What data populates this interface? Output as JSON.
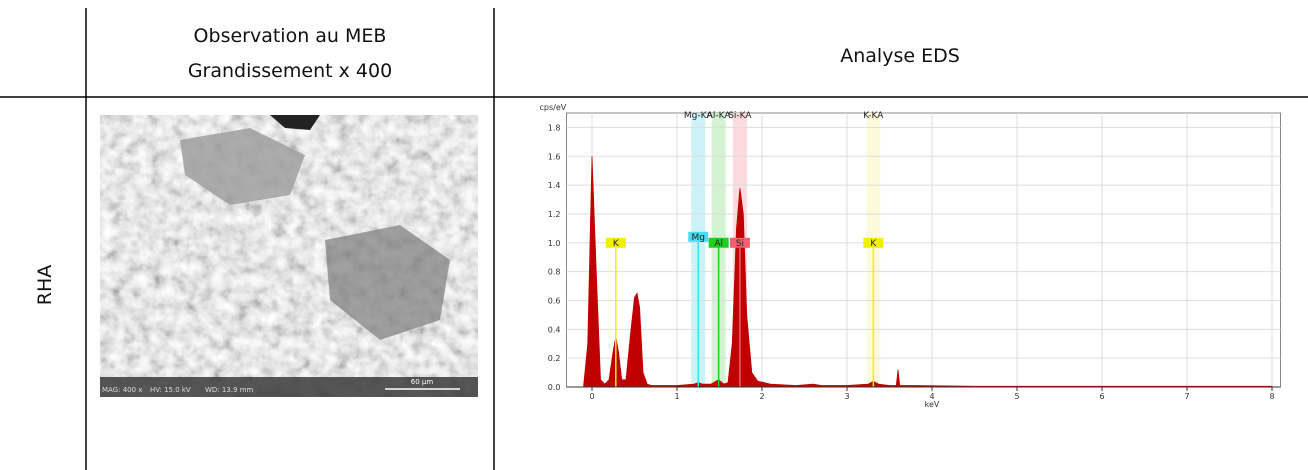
{
  "table": {
    "header": {
      "sem": [
        "Observation au MEB",
        "Grandissement x 400"
      ],
      "eds": "Analyse EDS"
    },
    "row_label": "RHA"
  },
  "sem_image": {
    "info": [
      "MAG: 400 x",
      "HV: 15.0 kV",
      "WD: 13.9 mm"
    ],
    "scale_bar": "60 µm"
  },
  "chart_data": {
    "type": "area",
    "y_label": "cps/eV",
    "x_label": "keV",
    "color": "#c00000",
    "grid": true,
    "xlim": [
      -0.3,
      8.1
    ],
    "ylim": [
      0,
      1.9
    ],
    "xticks": [
      0,
      1,
      2,
      3,
      4,
      5,
      6,
      7,
      8
    ],
    "yticks": [
      {
        "value": 0,
        "label": "0.0"
      },
      0.2,
      0.4,
      0.6,
      0.8,
      {
        "value": 1,
        "label": "1.0"
      },
      1.2,
      1.4,
      1.6,
      1.8
    ],
    "x": [
      -0.2,
      -0.1,
      -0.05,
      0,
      0.05,
      0.1,
      0.15,
      0.2,
      0.25,
      0.28,
      0.31,
      0.35,
      0.4,
      0.45,
      0.5,
      0.53,
      0.56,
      0.6,
      0.65,
      0.7,
      0.8,
      1.0,
      1.2,
      1.25,
      1.3,
      1.4,
      1.49,
      1.55,
      1.6,
      1.65,
      1.7,
      1.74,
      1.78,
      1.82,
      1.88,
      1.95,
      2.1,
      2.4,
      2.6,
      2.7,
      3.0,
      3.25,
      3.31,
      3.37,
      3.5,
      3.58,
      3.6,
      3.62,
      3.8,
      4.5,
      5.5,
      6.5,
      7.5,
      8.0
    ],
    "values": [
      0,
      0,
      0.3,
      1.6,
      0.8,
      0.05,
      0.02,
      0.05,
      0.25,
      0.35,
      0.25,
      0.05,
      0.05,
      0.35,
      0.62,
      0.65,
      0.55,
      0.1,
      0.02,
      0.01,
      0.01,
      0.01,
      0.02,
      0.03,
      0.02,
      0.02,
      0.05,
      0.02,
      0.03,
      0.3,
      1.1,
      1.38,
      1.2,
      0.5,
      0.1,
      0.04,
      0.02,
      0.01,
      0.02,
      0.01,
      0.01,
      0.02,
      0.04,
      0.02,
      0.01,
      0.01,
      0.12,
      0.01,
      0.01,
      0.005,
      0.005,
      0.005,
      0.005,
      0.005
    ],
    "bands": [
      {
        "label": "Mg-KA",
        "energy": 1.25,
        "color": "#bfeff5"
      },
      {
        "label": "Al-KA",
        "energy": 1.49,
        "color": "#c8f0c8"
      },
      {
        "label": "Si-KA",
        "energy": 1.74,
        "color": "#fad2d6"
      },
      {
        "label": "K-KA",
        "energy": 3.31,
        "color": "#fafad2"
      }
    ],
    "markers": [
      {
        "label": "K",
        "energy": 0.28,
        "color": "#f0f000"
      },
      {
        "label": "Mg",
        "energy": 1.25,
        "color": "#40e0f0"
      },
      {
        "label": "Al",
        "energy": 1.49,
        "color": "#20d020"
      },
      {
        "label": "Si",
        "energy": 1.74,
        "color": "#f06070"
      },
      {
        "label": "K",
        "energy": 3.31,
        "color": "#f0f000"
      }
    ]
  }
}
